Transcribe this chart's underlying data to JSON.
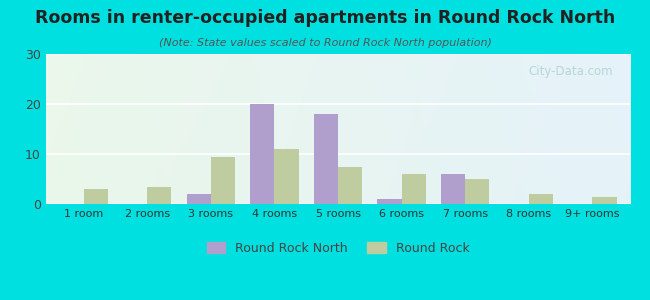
{
  "title": "Rooms in renter-occupied apartments in Round Rock North",
  "subtitle": "(Note: State values scaled to Round Rock North population)",
  "categories": [
    "1 room",
    "2 rooms",
    "3 rooms",
    "4 rooms",
    "5 rooms",
    "6 rooms",
    "7 rooms",
    "8 rooms",
    "9+ rooms"
  ],
  "round_rock_north": [
    0,
    0,
    2,
    20,
    18,
    1,
    6,
    0,
    0
  ],
  "round_rock": [
    3,
    3.5,
    9.5,
    11,
    7.5,
    6,
    5,
    2,
    1.5
  ],
  "color_rrn": "#b09fcc",
  "color_rr": "#bfcc9f",
  "background_outer": "#00e0e0",
  "ylim": [
    0,
    30
  ],
  "yticks": [
    0,
    10,
    20,
    30
  ],
  "bar_width": 0.38,
  "watermark": "City-Data.com",
  "legend_label_rrn": "Round Rock North",
  "legend_label_rr": "Round Rock"
}
